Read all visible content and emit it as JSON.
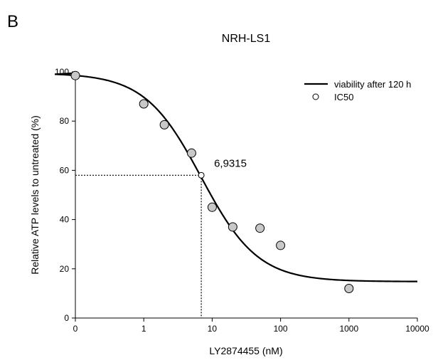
{
  "panel_label": "B",
  "chart_data": {
    "type": "scatter",
    "title": "NRH-LS1",
    "xlabel": "LY2874455 (nM)",
    "ylabel": "Relative ATP levels to untreated (%)",
    "x_scale": "log",
    "xlim": [
      0,
      10000
    ],
    "ylim": [
      0,
      100
    ],
    "x_ticks": [
      0,
      1,
      10,
      100,
      1000,
      10000
    ],
    "x_tick_labels": [
      "0",
      "1",
      "10",
      "100",
      "1000",
      "10000"
    ],
    "y_ticks": [
      0,
      20,
      40,
      60,
      80,
      100
    ],
    "y_tick_labels": [
      "0",
      "20",
      "40",
      "60",
      "80",
      "100"
    ],
    "points": [
      {
        "x": 0,
        "y": 98.5
      },
      {
        "x": 1,
        "y": 87
      },
      {
        "x": 2,
        "y": 78.5
      },
      {
        "x": 5,
        "y": 67
      },
      {
        "x": 10,
        "y": 45
      },
      {
        "x": 20,
        "y": 37
      },
      {
        "x": 50,
        "y": 36.5
      },
      {
        "x": 100,
        "y": 29.5
      },
      {
        "x": 1000,
        "y": 12
      }
    ],
    "fit_curve": {
      "name": "viability after 120 h",
      "top": 99.5,
      "bottom": 14.8,
      "ic50": 6.9315,
      "hill": 1.05
    },
    "ic50_point": {
      "name": "IC50",
      "x": 6.9315,
      "y": 58,
      "label": "6,9315"
    },
    "legend": {
      "position": "top-right",
      "entries": [
        "viability after 120 h",
        "IC50"
      ]
    },
    "colors": {
      "point_fill": "#c8c8c8",
      "line": "#000000",
      "ic50_fill": "#ffffff"
    }
  }
}
